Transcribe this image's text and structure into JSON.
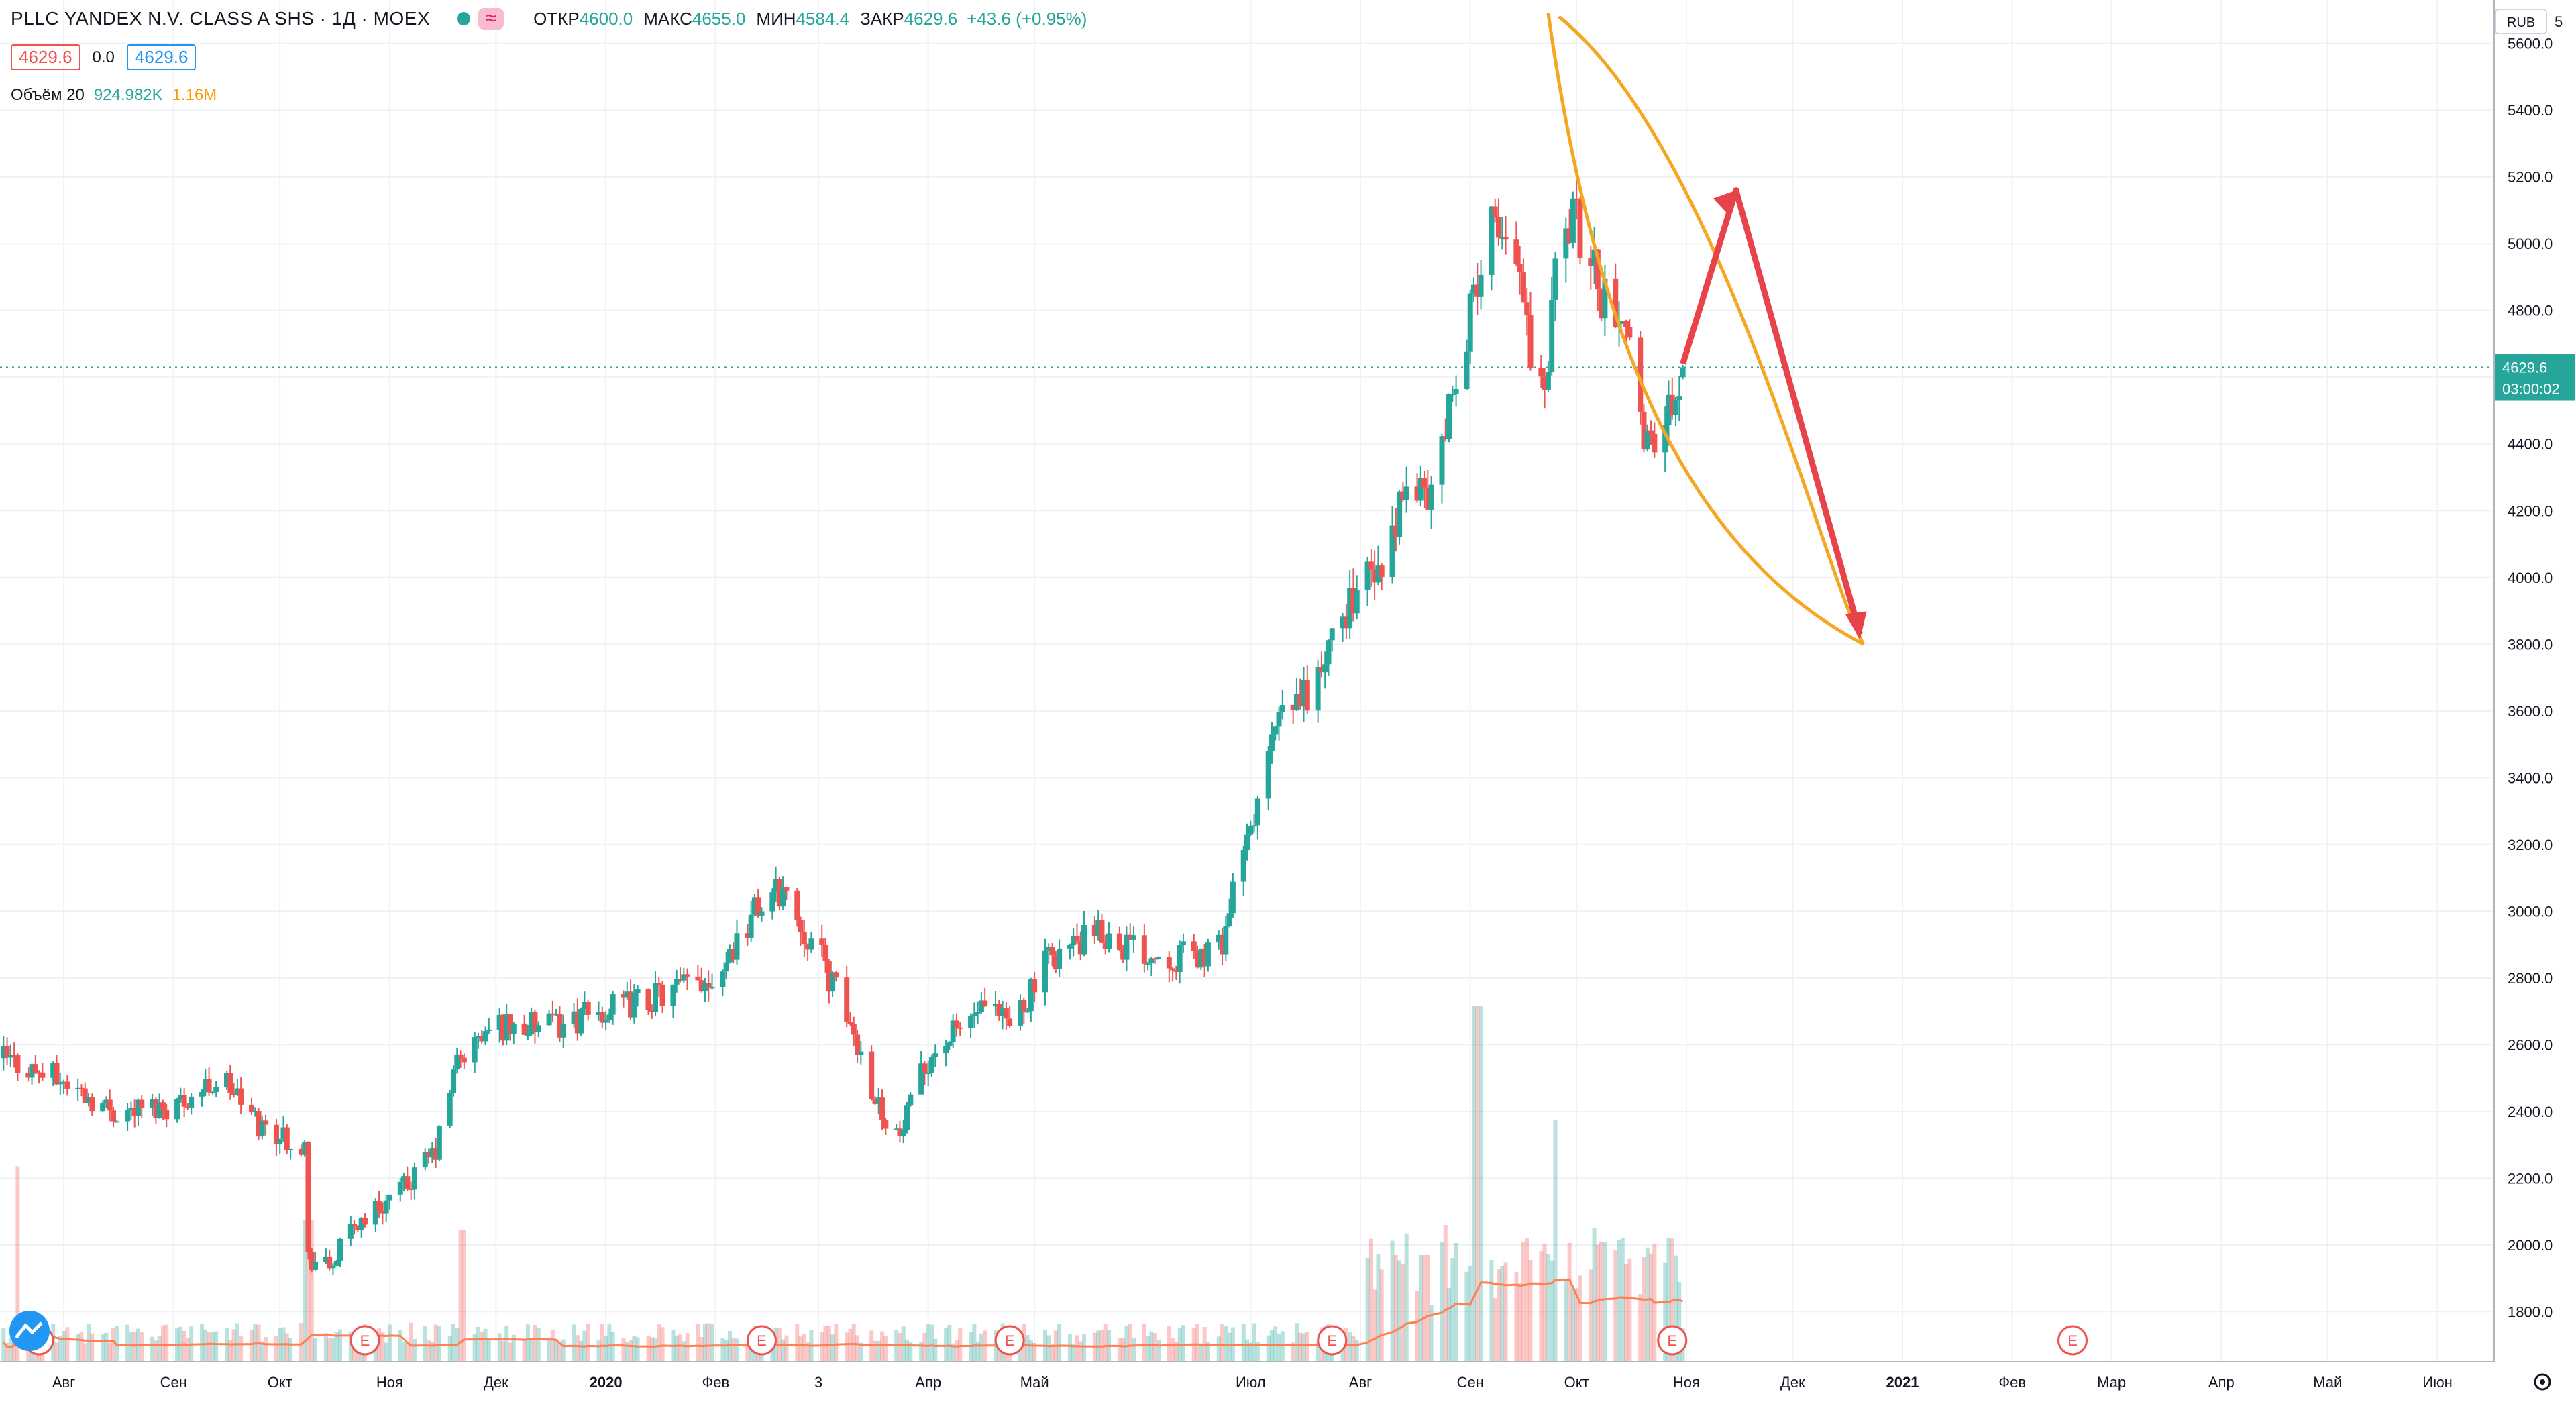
{
  "legend": {
    "title": "PLLC YANDEX N.V. CLASS A SHS · 1Д · MOEX",
    "o_label": "ОТКР",
    "o": "4600.0",
    "h_label": "МАКС",
    "h": "4655.0",
    "l_label": "МИН",
    "l": "4584.4",
    "c_label": "ЗАКР",
    "c": "4629.6",
    "change": "+43.6 (+0.95%)",
    "bid": "4629.6",
    "spread": "0.0",
    "ask": "4629.6",
    "wave_icon": "wave-icon"
  },
  "volume_legend": {
    "label": "Объём 20",
    "value": "924.982K",
    "ma": "1.16M"
  },
  "price_axis": {
    "currency": "RUB",
    "current_price": "4629.6",
    "countdown": "03:00:02",
    "top_partial": "5"
  },
  "colors": {
    "up": "#26a69a",
    "down": "#ef5350",
    "drawing_curve": "#f5a623",
    "drawing_arrow": "#e8434b",
    "volume_ma": "#ff7f50",
    "grid": "#eef1f5",
    "price_line": "#26a69a"
  },
  "chart_data": {
    "type": "candlestick",
    "title": "PLLC YANDEX N.V. CLASS A SHS",
    "timeframe": "1Д",
    "exchange": "MOEX",
    "ylim": [
      1650,
      5730
    ],
    "y_ticks": [
      1800,
      2000,
      2200,
      2400,
      2600,
      2800,
      3000,
      3200,
      3400,
      3600,
      3800,
      4000,
      4200,
      4400,
      4600,
      4800,
      5000,
      5200,
      5400,
      5600
    ],
    "y_tick_labels": [
      "1800.0",
      "2000.0",
      "2200.0",
      "2400.0",
      "2600.0",
      "2800.0",
      "3000.0",
      "3200.0",
      "3400.0",
      "3600.0",
      "3800.0",
      "4000.0",
      "4200.0",
      "4400.0",
      "4600.0",
      "4800.0",
      "5000.0",
      "5200.0",
      "5400.0",
      "5600.0"
    ],
    "x_range": [
      "2019-07-14",
      "2021-06-17"
    ],
    "x_ticks": [
      {
        "date": "2019-08-01",
        "label": "Авг"
      },
      {
        "date": "2019-09-01",
        "label": "Сен"
      },
      {
        "date": "2019-10-01",
        "label": "Окт"
      },
      {
        "date": "2019-11-01",
        "label": "Ноя"
      },
      {
        "date": "2019-12-01",
        "label": "Дек"
      },
      {
        "date": "2020-01-01",
        "label": "2020"
      },
      {
        "date": "2020-02-01",
        "label": "Фев"
      },
      {
        "date": "2020-03-01",
        "label": "3"
      },
      {
        "date": "2020-04-01",
        "label": "Апр"
      },
      {
        "date": "2020-05-01",
        "label": "Май"
      },
      {
        "date": "2020-07-01",
        "label": "Июл"
      },
      {
        "date": "2020-08-01",
        "label": "Авг"
      },
      {
        "date": "2020-09-01",
        "label": "Сен"
      },
      {
        "date": "2020-10-01",
        "label": "Окт"
      },
      {
        "date": "2020-11-01",
        "label": "Ноя"
      },
      {
        "date": "2020-12-01",
        "label": "Дек"
      },
      {
        "date": "2021-01-01",
        "label": "2021"
      },
      {
        "date": "2021-02-01",
        "label": "Фев"
      },
      {
        "date": "2021-03-01",
        "label": "Мар"
      },
      {
        "date": "2021-04-01",
        "label": "Апр"
      },
      {
        "date": "2021-05-01",
        "label": "Май"
      },
      {
        "date": "2021-06-01",
        "label": "Июн"
      }
    ],
    "earnings_markers": [
      {
        "date": "2019-07-25",
        "label": "E"
      },
      {
        "date": "2019-10-25",
        "label": "E"
      },
      {
        "date": "2020-02-14",
        "label": "E"
      },
      {
        "date": "2020-04-24",
        "label": "E"
      },
      {
        "date": "2020-07-24",
        "label": "E"
      },
      {
        "date": "2020-10-28",
        "label": "E"
      },
      {
        "date": "2021-02-18",
        "label": "E"
      }
    ],
    "close_anchors": [
      [
        "2019-07-15",
        2560
      ],
      [
        "2019-08-01",
        2490
      ],
      [
        "2019-08-15",
        2400
      ],
      [
        "2019-09-01",
        2420
      ],
      [
        "2019-09-15",
        2500
      ],
      [
        "2019-09-25",
        2360
      ],
      [
        "2019-10-08",
        2300
      ],
      [
        "2019-10-09",
        1960
      ],
      [
        "2019-10-15",
        1930
      ],
      [
        "2019-10-22",
        2060
      ],
      [
        "2019-11-05",
        2170
      ],
      [
        "2019-11-14",
        2280
      ],
      [
        "2019-11-20",
        2550
      ],
      [
        "2019-12-01",
        2660
      ],
      [
        "2019-12-15",
        2650
      ],
      [
        "2020-01-01",
        2700
      ],
      [
        "2020-01-20",
        2760
      ],
      [
        "2020-02-01",
        2810
      ],
      [
        "2020-02-12",
        3000
      ],
      [
        "2020-02-20",
        3070
      ],
      [
        "2020-02-25",
        2960
      ],
      [
        "2020-03-01",
        2880
      ],
      [
        "2020-03-10",
        2660
      ],
      [
        "2020-03-18",
        2420
      ],
      [
        "2020-03-24",
        2320
      ],
      [
        "2020-04-01",
        2560
      ],
      [
        "2020-04-15",
        2700
      ],
      [
        "2020-04-24",
        2660
      ],
      [
        "2020-05-06",
        2870
      ],
      [
        "2020-05-20",
        2930
      ],
      [
        "2020-06-01",
        2880
      ],
      [
        "2020-06-15",
        2860
      ],
      [
        "2020-06-22",
        2880
      ],
      [
        "2020-06-30",
        3200
      ],
      [
        "2020-07-08",
        3540
      ],
      [
        "2020-07-20",
        3700
      ],
      [
        "2020-07-31",
        3980
      ],
      [
        "2020-08-07",
        4000
      ],
      [
        "2020-08-15",
        4300
      ],
      [
        "2020-08-20",
        4230
      ],
      [
        "2020-08-27",
        4520
      ],
      [
        "2020-09-02",
        4860
      ],
      [
        "2020-09-05",
        5050
      ],
      [
        "2020-09-14",
        4960
      ],
      [
        "2020-09-18",
        4700
      ],
      [
        "2020-09-22",
        4580
      ],
      [
        "2020-09-25",
        4920
      ],
      [
        "2020-09-30",
        5100
      ],
      [
        "2020-10-07",
        4880
      ],
      [
        "2020-10-14",
        4740
      ],
      [
        "2020-10-20",
        4440
      ],
      [
        "2020-10-23",
        4420
      ],
      [
        "2020-10-28",
        4540
      ],
      [
        "2020-10-31",
        4629.6
      ]
    ],
    "last_candle": {
      "date": "2020-10-31",
      "open": 4600.0,
      "high": 4655.0,
      "low": 4584.4,
      "close": 4629.6
    },
    "volume": {
      "series_name": "Объём 20",
      "last": "924.982K",
      "ma": "1.16M",
      "spikes": [
        {
          "date": "2019-07-20",
          "rel": 0.55
        },
        {
          "date": "2019-10-09",
          "rel": 0.4
        },
        {
          "date": "2019-11-22",
          "rel": 0.37
        },
        {
          "date": "2020-08-19",
          "rel": 0.3
        },
        {
          "date": "2020-08-28",
          "rel": 0.26
        },
        {
          "date": "2020-09-03",
          "rel": 1.0
        },
        {
          "date": "2020-09-26",
          "rel": 0.68
        }
      ]
    },
    "drawings": {
      "curve_upper": [
        [
          "2020-09-26",
          5680
        ],
        [
          "2020-11-10",
          5300
        ],
        [
          "2020-12-10",
          4000
        ],
        [
          "2020-12-21",
          3800
        ]
      ],
      "curve_lower": [
        [
          "2020-09-23",
          5690
        ],
        [
          "2020-10-05",
          4800
        ],
        [
          "2020-10-28",
          4100
        ],
        [
          "2020-12-21",
          3800
        ]
      ],
      "arrow_path": [
        [
          "2020-10-31",
          4640
        ],
        [
          "2020-11-15",
          5160
        ],
        [
          "2020-12-20",
          3830
        ]
      ]
    }
  }
}
